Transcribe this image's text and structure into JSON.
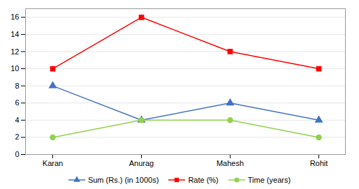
{
  "chart_data": {
    "type": "line",
    "categories": [
      "Karan",
      "Anurag",
      "Mahesh",
      "Rohit"
    ],
    "series": [
      {
        "name": "Sum (Rs.) (in 1000s)",
        "color": "#4472C4",
        "marker": "triangle",
        "values": [
          8,
          4,
          6,
          4
        ]
      },
      {
        "name": "Rate (%)",
        "color": "#FF0000",
        "marker": "square",
        "values": [
          10,
          16,
          12,
          10
        ]
      },
      {
        "name": "Time (years)",
        "color": "#92D050",
        "marker": "circle",
        "values": [
          2,
          4,
          4,
          2
        ]
      }
    ],
    "ylim": [
      0,
      17
    ],
    "yticks": [
      0,
      2,
      4,
      6,
      8,
      10,
      12,
      14,
      16
    ],
    "grid": true,
    "legend": "bottom"
  }
}
